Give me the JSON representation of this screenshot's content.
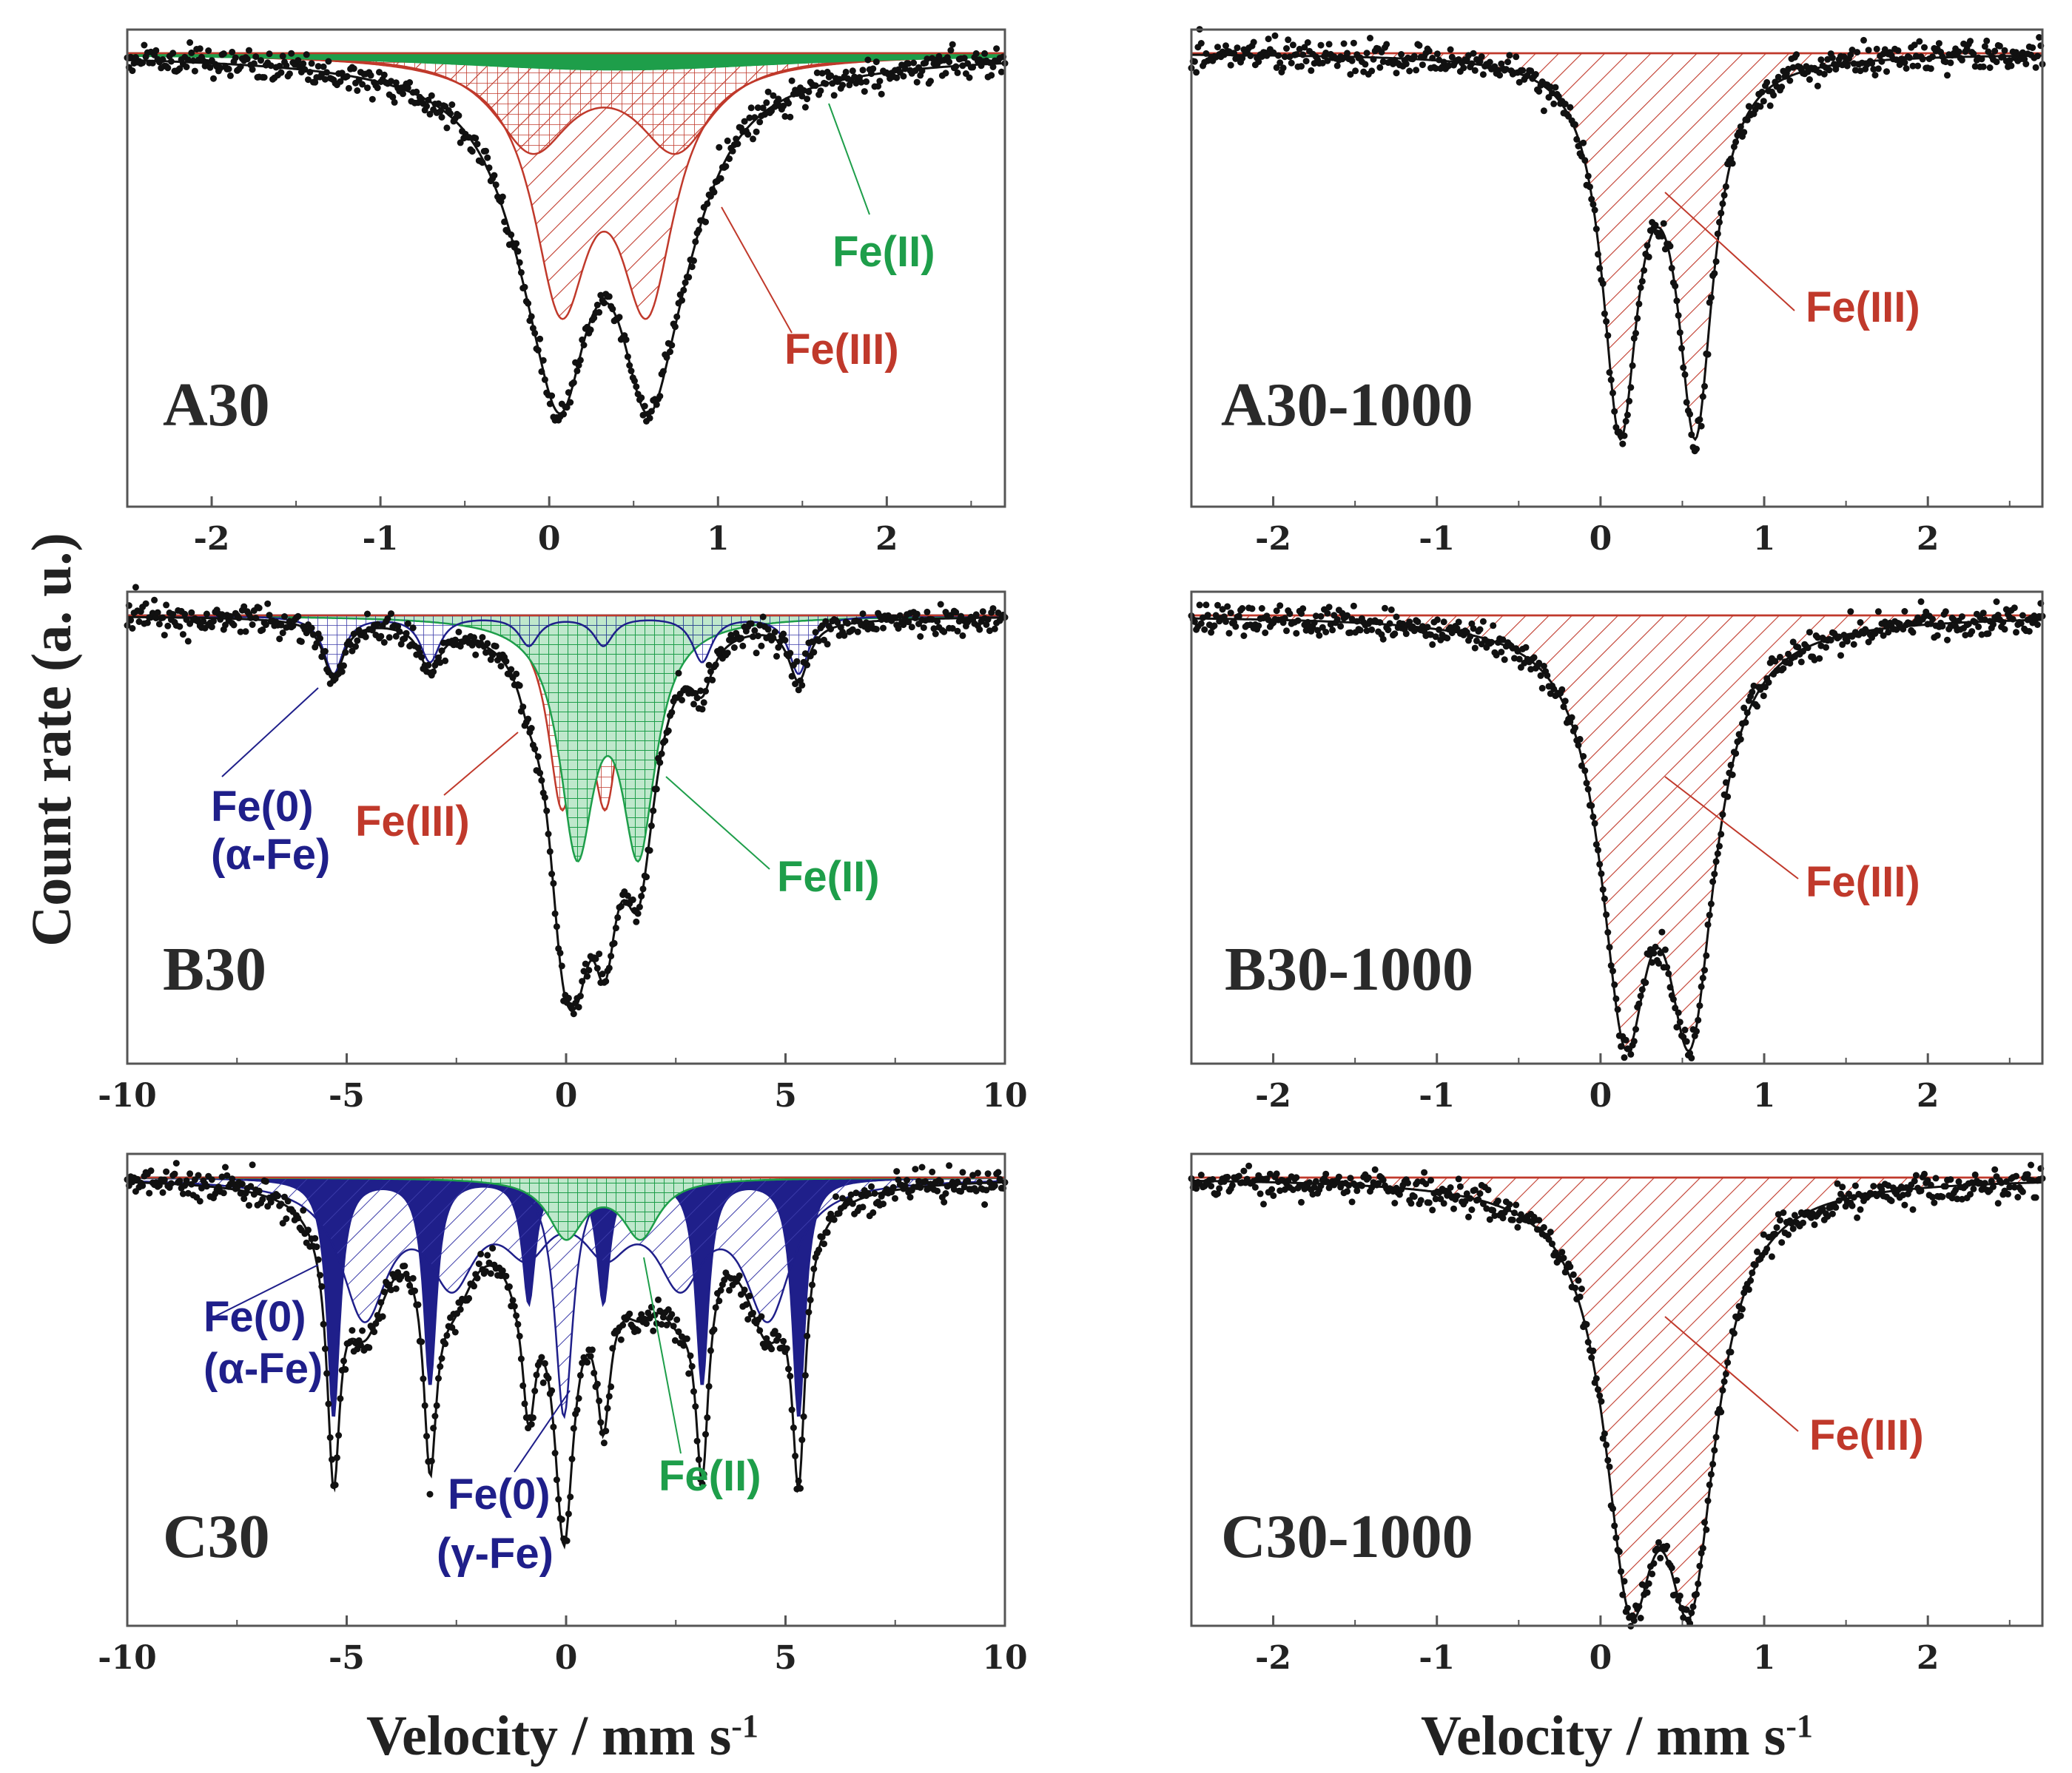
{
  "figure": {
    "ylabel": "Count rate (a. u.)",
    "xlabel": "Velocity / mm s",
    "xlabel_sup": "-1"
  },
  "colors": {
    "fe3": "#c0392b",
    "fe2": "#1e9e4a",
    "fe0": "#1f1f8a",
    "data": "#111111"
  },
  "chart_data": [
    {
      "type": "scatter",
      "id": "A30",
      "title": "A30",
      "xlim": [
        -2.5,
        2.7
      ],
      "xticks": [
        -2,
        -1,
        0,
        1,
        2
      ],
      "ylim": [
        0,
        1.05
      ],
      "components": [
        {
          "name": "Fe(III) doublet 1",
          "state": "Fe(III)",
          "pattern": "hatch",
          "peaks": [
            0.07,
            0.58
          ],
          "depth": 0.56,
          "width": 0.4
        },
        {
          "name": "Fe(III) doublet 2",
          "state": "Fe(III)",
          "pattern": "grid",
          "peaks": [
            -0.1,
            0.75
          ],
          "depth": 0.22,
          "width": 0.55
        },
        {
          "name": "Fe(II)",
          "state": "Fe(II)",
          "pattern": "solid",
          "peaks": [
            0.2,
            0.6
          ],
          "depth": 0.02,
          "width": 2.5
        }
      ],
      "annotations": [
        {
          "text": "Fe(II)",
          "state": "Fe(II)"
        },
        {
          "text": "Fe(III)",
          "state": "Fe(III)"
        }
      ]
    },
    {
      "type": "scatter",
      "id": "A30-1000",
      "title": "A30-1000",
      "xlim": [
        -2.5,
        2.7
      ],
      "xticks": [
        -2,
        -1,
        0,
        1,
        2
      ],
      "ylim": [
        0,
        1.05
      ],
      "components": [
        {
          "name": "Fe(III) doublet",
          "state": "Fe(III)",
          "pattern": "hatch",
          "peaks": [
            0.12,
            0.58
          ],
          "depth": 0.86,
          "width": 0.26
        }
      ],
      "annotations": [
        {
          "text": "Fe(III)",
          "state": "Fe(III)"
        }
      ]
    },
    {
      "type": "scatter",
      "id": "B30",
      "title": "B30",
      "xlim": [
        -10,
        10
      ],
      "xticks": [
        -10,
        -5,
        0,
        5,
        10
      ],
      "ylim": [
        0,
        1.05
      ],
      "components": [
        {
          "name": "Fe(III)",
          "state": "Fe(III)",
          "pattern": "grid",
          "peaks": [
            -0.1,
            0.9
          ],
          "depth": 0.42,
          "width": 0.75
        },
        {
          "name": "Fe(II)",
          "state": "Fe(II)",
          "pattern": "grid",
          "peaks": [
            0.25,
            1.65
          ],
          "depth": 0.54,
          "width": 0.95
        },
        {
          "name": "Fe(0) alpha-Fe",
          "state": "Fe(0)",
          "pattern": "grid",
          "peaks": [
            -5.3,
            -3.1,
            -0.85,
            0.85,
            3.1,
            5.3
          ],
          "depths": [
            0.14,
            0.11,
            0.07,
            0.07,
            0.11,
            0.14
          ],
          "width": 0.55
        }
      ],
      "annotations": [
        {
          "text": "Fe(0)",
          "state": "Fe(0)"
        },
        {
          "text": "(α-Fe)",
          "state": "Fe(0)"
        },
        {
          "text": "Fe(III)",
          "state": "Fe(III)"
        },
        {
          "text": "Fe(II)",
          "state": "Fe(II)"
        }
      ]
    },
    {
      "type": "scatter",
      "id": "B30-1000",
      "title": "B30-1000",
      "xlim": [
        -2.5,
        2.7
      ],
      "xticks": [
        -2,
        -1,
        0,
        1,
        2
      ],
      "ylim": [
        0,
        1.05
      ],
      "components": [
        {
          "name": "Fe(III) doublet",
          "state": "Fe(III)",
          "pattern": "hatch",
          "peaks": [
            0.15,
            0.55
          ],
          "depth": 0.9,
          "width": 0.36
        }
      ],
      "annotations": [
        {
          "text": "Fe(III)",
          "state": "Fe(III)"
        }
      ]
    },
    {
      "type": "scatter",
      "id": "C30",
      "title": "C30",
      "xlim": [
        -10,
        10
      ],
      "xticks": [
        -10,
        -5,
        0,
        5,
        10
      ],
      "ylim": [
        0,
        1.05
      ],
      "components": [
        {
          "name": "Fe(0) alpha-Fe sharp",
          "state": "Fe(0)",
          "pattern": "solid",
          "peaks": [
            -5.3,
            -3.1,
            -0.85,
            0.85,
            3.1,
            5.3
          ],
          "depths": [
            0.58,
            0.5,
            0.3,
            0.3,
            0.5,
            0.58
          ],
          "width": 0.35
        },
        {
          "name": "Fe(0) alpha-Fe broad",
          "state": "Fe(0)",
          "pattern": "hatch",
          "peaks": [
            -4.6,
            -2.6,
            -0.9,
            0.9,
            2.6,
            4.6
          ],
          "depths": [
            0.32,
            0.22,
            0.14,
            0.14,
            0.22,
            0.32
          ],
          "width": 1.3
        },
        {
          "name": "Fe(0) gamma-Fe",
          "state": "Fe(0)",
          "pattern": "hatch",
          "peaks": [
            -0.05
          ],
          "depth": 0.58,
          "width": 0.5
        },
        {
          "name": "Fe(II)",
          "state": "Fe(II)",
          "pattern": "grid",
          "peaks": [
            0.0,
            1.7
          ],
          "depth": 0.14,
          "width": 1.0
        }
      ],
      "annotations": [
        {
          "text": "Fe(0)",
          "state": "Fe(0)"
        },
        {
          "text": "(α-Fe)",
          "state": "Fe(0)"
        },
        {
          "text": "Fe(0)",
          "state": "Fe(0)"
        },
        {
          "text": "(γ-Fe)",
          "state": "Fe(0)"
        },
        {
          "text": "Fe(II)",
          "state": "Fe(II)"
        }
      ]
    },
    {
      "type": "scatter",
      "id": "C30-1000",
      "title": "C30-1000",
      "xlim": [
        -2.5,
        2.7
      ],
      "xticks": [
        -2,
        -1,
        0,
        1,
        2
      ],
      "ylim": [
        0,
        1.05
      ],
      "components": [
        {
          "name": "Fe(III) doublet",
          "state": "Fe(III)",
          "pattern": "hatch",
          "peaks": [
            0.18,
            0.55
          ],
          "depth": 0.88,
          "width": 0.38
        }
      ],
      "annotations": [
        {
          "text": "Fe(III)",
          "state": "Fe(III)"
        }
      ]
    }
  ]
}
